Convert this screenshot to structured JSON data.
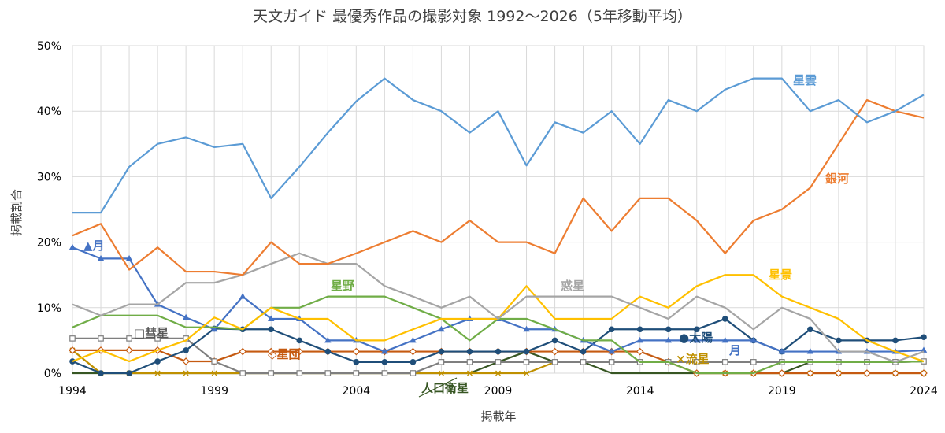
{
  "chart_data": {
    "type": "line",
    "title": "天文ガイド 最優秀作品の撮影対象 1992～2026（5年移動平均）",
    "xlabel": "掲載年",
    "ylabel": "掲載割合",
    "x": [
      1994,
      1995,
      1996,
      1997,
      1998,
      1999,
      2000,
      2001,
      2002,
      2003,
      2004,
      2005,
      2006,
      2007,
      2008,
      2009,
      2010,
      2011,
      2012,
      2013,
      2014,
      2015,
      2016,
      2017,
      2018,
      2019,
      2020,
      2021,
      2022,
      2023,
      2024
    ],
    "xlim": [
      1994,
      2024
    ],
    "x_ticks": [
      1994,
      1999,
      2004,
      2009,
      2014,
      2019,
      2024
    ],
    "ylim": [
      0,
      0.5
    ],
    "y_ticks": [
      0,
      0.1,
      0.2,
      0.3,
      0.4,
      0.5
    ],
    "y_tick_labels": [
      "0%",
      "10%",
      "20%",
      "30%",
      "40%",
      "50%"
    ],
    "grid": true,
    "legend": "inline labels",
    "series": [
      {
        "name": "星雲",
        "color": "#5b9bd5",
        "marker": "none",
        "values": [
          0.245,
          0.245,
          0.315,
          0.35,
          0.36,
          0.345,
          0.35,
          0.267,
          0.315,
          0.367,
          0.415,
          0.45,
          0.417,
          0.4,
          0.367,
          0.4,
          0.317,
          0.383,
          0.367,
          0.4,
          0.35,
          0.417,
          0.4,
          0.433,
          0.45,
          0.45,
          0.4,
          0.417,
          0.383,
          0.4,
          0.425
        ]
      },
      {
        "name": "銀河",
        "color": "#ed7d31",
        "marker": "none",
        "values": [
          0.21,
          0.228,
          0.158,
          0.192,
          0.155,
          0.155,
          0.15,
          0.2,
          0.167,
          0.167,
          0.183,
          0.2,
          0.217,
          0.2,
          0.233,
          0.2,
          0.2,
          0.183,
          0.267,
          0.217,
          0.267,
          0.267,
          0.233,
          0.183,
          0.233,
          0.25,
          0.283,
          0.35,
          0.417,
          0.4,
          0.39
        ]
      },
      {
        "name": "惑星",
        "color": "#a5a5a5",
        "marker": "none",
        "values": [
          0.105,
          0.088,
          0.105,
          0.105,
          0.138,
          0.138,
          0.15,
          0.167,
          0.183,
          0.167,
          0.167,
          0.133,
          0.117,
          0.1,
          0.117,
          0.083,
          0.117,
          0.117,
          0.117,
          0.117,
          0.1,
          0.083,
          0.117,
          0.1,
          0.067,
          0.1,
          0.083,
          0.033,
          0.033,
          0.017,
          0.033
        ]
      },
      {
        "name": "星景",
        "color": "#ffc000",
        "marker": "none",
        "values": [
          0.018,
          0.035,
          0.018,
          0.035,
          0.05,
          0.085,
          0.067,
          0.1,
          0.083,
          0.083,
          0.05,
          0.05,
          0.067,
          0.083,
          0.083,
          0.083,
          0.133,
          0.083,
          0.083,
          0.083,
          0.117,
          0.1,
          0.133,
          0.15,
          0.15,
          0.117,
          0.1,
          0.083,
          0.05,
          0.033,
          0.018
        ]
      },
      {
        "name": "星野",
        "color": "#70ad47",
        "marker": "none",
        "values": [
          0.07,
          0.088,
          0.088,
          0.088,
          0.07,
          0.07,
          0.067,
          0.1,
          0.1,
          0.117,
          0.117,
          0.117,
          0.1,
          0.083,
          0.05,
          0.083,
          0.083,
          0.067,
          0.05,
          0.05,
          0.017,
          0.017,
          0.0,
          0.0,
          0.0,
          0.017,
          0.017,
          0.017,
          0.017,
          0.017,
          0.018
        ]
      },
      {
        "name": "月",
        "color": "#4472c4",
        "marker": "triangle",
        "values": [
          0.192,
          0.175,
          0.175,
          0.105,
          0.085,
          0.067,
          0.117,
          0.083,
          0.083,
          0.05,
          0.05,
          0.033,
          0.05,
          0.067,
          0.083,
          0.083,
          0.067,
          0.067,
          0.05,
          0.033,
          0.05,
          0.05,
          0.05,
          0.05,
          0.05,
          0.033,
          0.033,
          0.033,
          0.033,
          0.033,
          0.035
        ]
      },
      {
        "name": "太陽",
        "color": "#1f4e79",
        "marker": "circle",
        "values": [
          0.018,
          0.0,
          0.0,
          0.018,
          0.035,
          0.068,
          0.067,
          0.067,
          0.05,
          0.033,
          0.017,
          0.017,
          0.017,
          0.033,
          0.033,
          0.033,
          0.033,
          0.05,
          0.033,
          0.067,
          0.067,
          0.067,
          0.067,
          0.083,
          0.05,
          0.033,
          0.067,
          0.05,
          0.05,
          0.05,
          0.055
        ]
      },
      {
        "name": "彗星",
        "color": "#7f7f7f",
        "marker": "square",
        "values": [
          0.053,
          0.053,
          0.053,
          0.053,
          0.053,
          0.018,
          0.0,
          0.0,
          0.0,
          0.0,
          0.0,
          0.0,
          0.0,
          0.017,
          0.017,
          0.017,
          0.017,
          0.017,
          0.017,
          0.017,
          0.017,
          0.017,
          0.017,
          0.017,
          0.017,
          0.017,
          0.017,
          0.017,
          0.017,
          0.017,
          0.018
        ]
      },
      {
        "name": "星団",
        "color": "#c55a11",
        "marker": "diamond",
        "values": [
          0.035,
          0.035,
          0.035,
          0.035,
          0.018,
          0.018,
          0.033,
          0.033,
          0.033,
          0.033,
          0.033,
          0.033,
          0.033,
          0.033,
          0.033,
          0.033,
          0.033,
          0.033,
          0.033,
          0.033,
          0.033,
          0.017,
          0.0,
          0.0,
          0.0,
          0.0,
          0.0,
          0.0,
          0.0,
          0.0,
          0.0
        ]
      },
      {
        "name": "流星",
        "color": "#bf9000",
        "marker": "x",
        "values": [
          0.035,
          0.0,
          0.0,
          0.0,
          0.0,
          0.0,
          0.0,
          0.0,
          0.0,
          0.0,
          0.0,
          0.0,
          0.0,
          0.0,
          0.0,
          0.0,
          0.0,
          0.017,
          0.017,
          0.017,
          0.017,
          0.017,
          0.0,
          0.0,
          0.0,
          0.0,
          0.0,
          0.0,
          0.0,
          0.0,
          0.0
        ]
      },
      {
        "name": "人口衛星",
        "color": "#375623",
        "marker": "none",
        "values": [
          0.0,
          0.0,
          0.0,
          0.0,
          0.0,
          0.0,
          0.0,
          0.0,
          0.0,
          0.0,
          0.0,
          0.0,
          0.0,
          0.0,
          0.0,
          0.017,
          0.033,
          0.017,
          0.017,
          0.0,
          0.0,
          0.0,
          0.0,
          0.0,
          0.0,
          0.0,
          0.017,
          0.017,
          0.017,
          0.017,
          0.018
        ]
      }
    ],
    "labels": [
      {
        "series": "星雲",
        "text": "星雲",
        "color": "#5b9bd5"
      },
      {
        "series": "銀河",
        "text": "銀河",
        "color": "#ed7d31"
      },
      {
        "series": "惑星",
        "text": "惑星",
        "color": "#a5a5a5"
      },
      {
        "series": "星景",
        "text": "星景",
        "color": "#ffc000"
      },
      {
        "series": "星野",
        "text": "星野",
        "color": "#70ad47"
      },
      {
        "series": "月",
        "text": "▲月",
        "color": "#4472c4"
      },
      {
        "series": "月",
        "text": "月",
        "color": "#4472c4"
      },
      {
        "series": "太陽",
        "text": "●太陽",
        "color": "#1f4e79"
      },
      {
        "series": "彗星",
        "text": "□彗星",
        "color": "#595959"
      },
      {
        "series": "星団",
        "text": "◇星団",
        "color": "#c55a11"
      },
      {
        "series": "流星",
        "text": "×流星",
        "color": "#bf9000"
      },
      {
        "series": "人口衛星",
        "text": "人口衛星",
        "color": "#375623"
      }
    ]
  }
}
